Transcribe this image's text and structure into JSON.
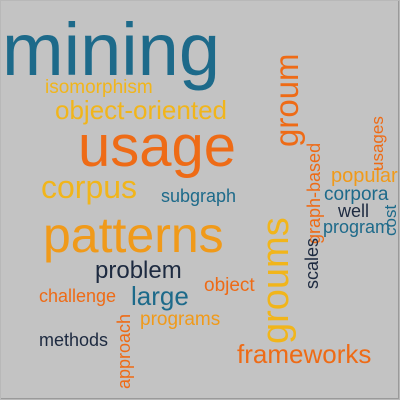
{
  "palette": {
    "background": "#c3c3c3",
    "teal": "#1d6a8a",
    "orange": "#ee6b16",
    "amber": "#f09a1a",
    "gold": "#f1b51b",
    "navy": "#1d2a40"
  },
  "words": [
    {
      "id": "w-mining",
      "text": "mining",
      "color": "#1d6a8a",
      "vertical": false
    },
    {
      "id": "w-isomorphism",
      "text": "isomorphism",
      "color": "#f1b51b",
      "vertical": false
    },
    {
      "id": "w-objoriented",
      "text": "object-oriented",
      "color": "#f1b51b",
      "vertical": false
    },
    {
      "id": "w-usage",
      "text": "usage",
      "color": "#ee6b16",
      "vertical": false
    },
    {
      "id": "w-groum",
      "text": "groum",
      "color": "#ee6b16",
      "vertical": true
    },
    {
      "id": "w-corpus",
      "text": "corpus",
      "color": "#f1b51b",
      "vertical": false
    },
    {
      "id": "w-subgraph",
      "text": "subgraph",
      "color": "#1d6a8a",
      "vertical": false
    },
    {
      "id": "w-patterns",
      "text": "patterns",
      "color": "#f09a1a",
      "vertical": false
    },
    {
      "id": "w-groums",
      "text": "groums",
      "color": "#f1b51b",
      "vertical": true
    },
    {
      "id": "w-graphbased",
      "text": "graph-based",
      "color": "#ee6b16",
      "vertical": true
    },
    {
      "id": "w-popular",
      "text": "popular",
      "color": "#f09a1a",
      "vertical": false
    },
    {
      "id": "w-usages",
      "text": "usages",
      "color": "#ee6b16",
      "vertical": true
    },
    {
      "id": "w-corpora",
      "text": "corpora",
      "color": "#1d6a8a",
      "vertical": false
    },
    {
      "id": "w-well",
      "text": "well",
      "color": "#1d2a40",
      "vertical": false
    },
    {
      "id": "w-program",
      "text": "program",
      "color": "#1d6a8a",
      "vertical": false
    },
    {
      "id": "w-cost",
      "text": "cost",
      "color": "#1d6a8a",
      "vertical": true
    },
    {
      "id": "w-scales",
      "text": "scales",
      "color": "#1d2a40",
      "vertical": true
    },
    {
      "id": "w-problem",
      "text": "problem",
      "color": "#1d2a40",
      "vertical": false
    },
    {
      "id": "w-object",
      "text": "object",
      "color": "#ee6b16",
      "vertical": false
    },
    {
      "id": "w-challenge",
      "text": "challenge",
      "color": "#ee6b16",
      "vertical": false
    },
    {
      "id": "w-large",
      "text": "large",
      "color": "#1d6a8a",
      "vertical": false
    },
    {
      "id": "w-programs",
      "text": "programs",
      "color": "#f09a1a",
      "vertical": false
    },
    {
      "id": "w-methods",
      "text": "methods",
      "color": "#1d2a40",
      "vertical": false
    },
    {
      "id": "w-approach",
      "text": "approach",
      "color": "#ee6b16",
      "vertical": true
    },
    {
      "id": "w-frameworks",
      "text": "frameworks",
      "color": "#ee6b16",
      "vertical": false
    }
  ]
}
